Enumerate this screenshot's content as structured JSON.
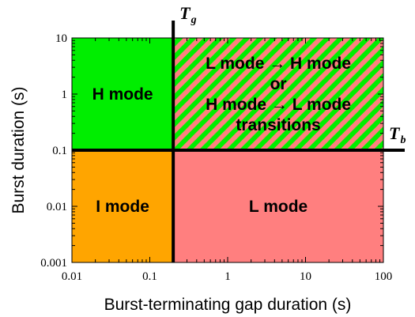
{
  "chart_data": {
    "type": "region-map",
    "x_axis": {
      "label": "Burst-terminating gap duration (s)",
      "scale": "log",
      "range": [
        0.01,
        100
      ],
      "ticks": [
        "0.01",
        "0.1",
        "1",
        "10",
        "100"
      ]
    },
    "y_axis": {
      "label": "Burst duration (s)",
      "scale": "log",
      "range": [
        0.001,
        10
      ],
      "ticks": [
        "0.001",
        "0.01",
        "0.1",
        "1",
        "10"
      ]
    },
    "thresholds": {
      "Tg": {
        "symbol": "T",
        "subscript": "g",
        "axis": "x",
        "value": 0.2
      },
      "Tb": {
        "symbol": "T",
        "subscript": "b",
        "axis": "y",
        "value": 0.1
      }
    },
    "regions": [
      {
        "id": "h-mode",
        "lines": [
          "H mode"
        ],
        "x": [
          0.01,
          0.2
        ],
        "y": [
          0.1,
          10
        ],
        "color": "#00ee00"
      },
      {
        "id": "transitions",
        "lines": [
          "L mode → H mode",
          "or",
          "H mode → L mode",
          "transitions"
        ],
        "x": [
          0.2,
          100
        ],
        "y": [
          0.1,
          10
        ],
        "color": "stripes",
        "stripe_colors": [
          "#00ee00",
          "#ff7f7f"
        ]
      },
      {
        "id": "i-mode",
        "lines": [
          "I mode"
        ],
        "x": [
          0.01,
          0.2
        ],
        "y": [
          0.001,
          0.1
        ],
        "color": "#ffa500"
      },
      {
        "id": "l-mode",
        "lines": [
          "L mode"
        ],
        "x": [
          0.2,
          100
        ],
        "y": [
          0.001,
          0.1
        ],
        "color": "#ff7f7f"
      }
    ]
  }
}
